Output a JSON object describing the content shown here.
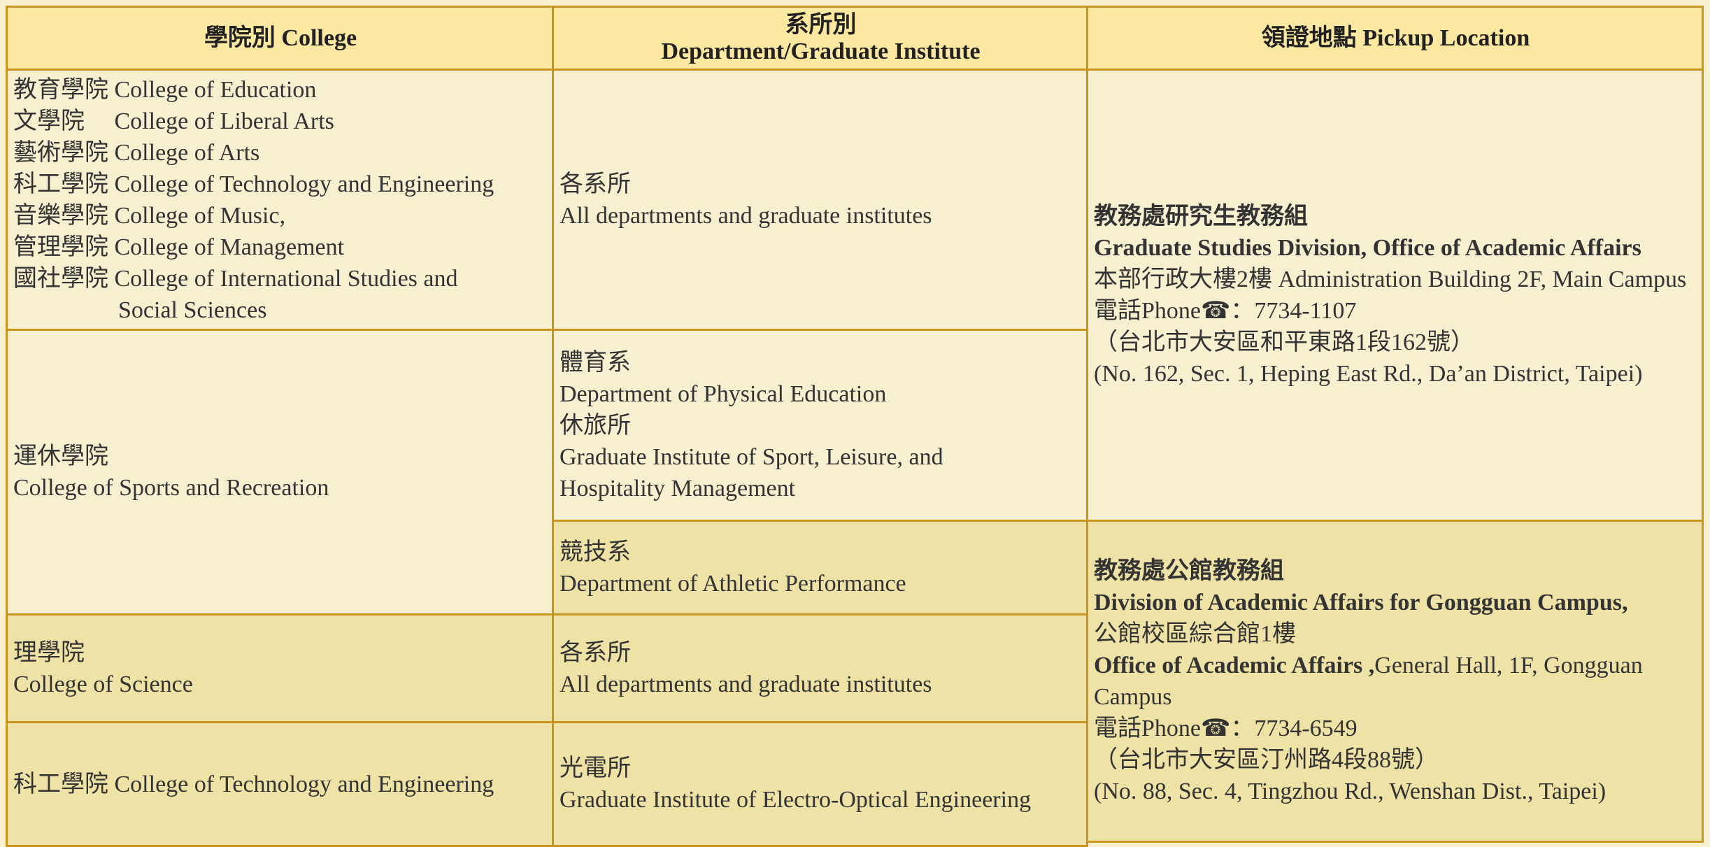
{
  "header": {
    "college": "學院別 College",
    "department": [
      "系所別",
      "Department/Graduate Institute"
    ],
    "location": "領證地點 Pickup Location"
  },
  "colleges": [
    [
      "教育學院 College of Education",
      "文學院　 College of Liberal Arts",
      "藝術學院 College of Arts",
      "科工學院 College of Technology and Engineering",
      "音樂學院 College of Music,",
      "管理學院 College of Management",
      "國社學院 College of International Studies and Social Sciences"
    ],
    [
      "運休學院",
      "College of Sports and Recreation"
    ],
    [
      "理學院",
      "College of Science"
    ],
    [
      "科工學院 College of Technology and Engineering"
    ]
  ],
  "departments": [
    [
      "各系所",
      "All departments and graduate institutes"
    ],
    [
      "體育系",
      "Department of Physical Education",
      "休旅所",
      "Graduate Institute of Sport, Leisure, and Hospitality Management"
    ],
    [
      "競技系",
      "Department of Athletic Performance"
    ],
    [
      "各系所",
      "All departments and graduate institutes"
    ],
    [
      "光電所",
      "Graduate Institute of Electro-Optical Engineering"
    ]
  ],
  "locations": [
    {
      "name": "教務處研究生教務組",
      "name_en": "Graduate Studies Division, Office of Academic Affairs",
      "address": "本部行政大樓2樓 Administration Building 2F, Main Campus",
      "phone": "電話Phone☎：7734-1107",
      "street": "（台北市大安區和平東路1段162號）",
      "street_en": "(No. 162, Sec. 1, Heping East Rd., Da’an District, Taipei)"
    },
    {
      "name": "教務處公館教務組",
      "name_en": "Division of Academic Affairs for Gongguan Campus,",
      "address": "公館校區綜合館1樓",
      "office": "Office of Academic Affairs ,",
      "office_place": "General Hall, 1F, Gongguan Campus",
      "phone": "電話Phone☎：7734-6549",
      "street": "（台北市大安區汀州路4段88號）",
      "street_en": "(No. 88, Sec. 4, Tingzhou Rd., Wenshan Dist., Taipei)"
    }
  ]
}
